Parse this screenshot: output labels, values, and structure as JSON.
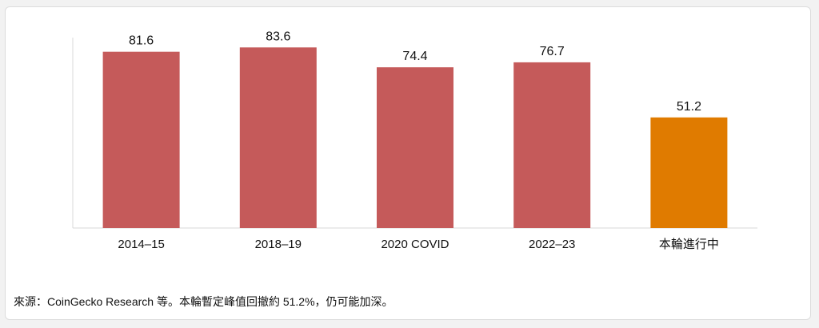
{
  "chart_data": {
    "type": "bar",
    "title": "",
    "xlabel": "",
    "ylabel": "",
    "categories": [
      "2014–15",
      "2018–19",
      "2020 COVID",
      "2022–23",
      "本輪進行中"
    ],
    "values": [
      81.6,
      83.6,
      74.4,
      76.7,
      51.2
    ],
    "bar_colors": [
      "#c55a5a",
      "#c55a5a",
      "#c55a5a",
      "#c55a5a",
      "#e07b00"
    ],
    "ylim": [
      0,
      100
    ],
    "grid": false,
    "data_labels": true
  },
  "footer": {
    "source": "來源：CoinGecko Research 等。本輪暫定峰值回撤約 51.2%，仍可能加深。"
  }
}
